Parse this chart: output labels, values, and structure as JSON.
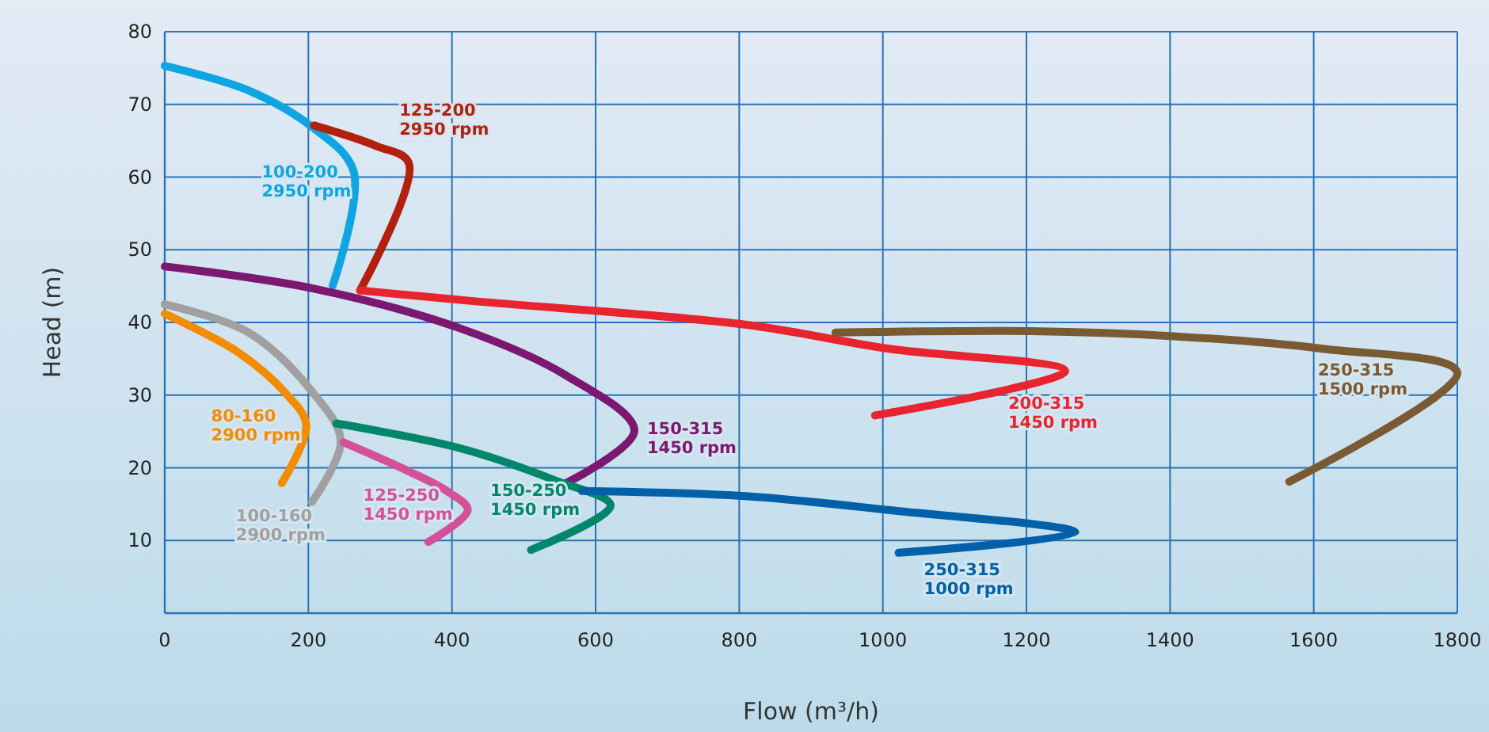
{
  "chart_data": {
    "type": "line",
    "xlabel": "Flow (m³/h)",
    "ylabel": "Head (m)",
    "xlim": [
      0,
      1800
    ],
    "xticks": [
      0,
      200,
      400,
      600,
      800,
      1000,
      1200,
      1400,
      1600,
      1800
    ],
    "ylim": [
      0,
      80
    ],
    "yticks": [
      10,
      20,
      30,
      40,
      50,
      60,
      70,
      80
    ],
    "grid": true,
    "marker": "none",
    "line_style": "solid",
    "series": [
      {
        "name": "100-200 2950 rpm",
        "color": "#0ea5e2",
        "x": [
          0,
          117,
          205,
          263,
          234
        ],
        "values": [
          75.3,
          71.9,
          66.9,
          60.8,
          45.1
        ]
      },
      {
        "name": "125-200 2950 rpm",
        "color": "#b3200e",
        "x": [
          208,
          294,
          340,
          272
        ],
        "values": [
          67.1,
          64.3,
          61.9,
          44.4
        ]
      },
      {
        "name": "200-315 1450 rpm",
        "color": "#e8242f",
        "x": [
          272,
          433,
          808,
          1007,
          1254,
          989
        ],
        "values": [
          44.4,
          42.9,
          39.7,
          36.4,
          33.3,
          27.2
        ]
      },
      {
        "name": "150-315 1450 rpm",
        "color": "#7b1870",
        "x": [
          0,
          205,
          411,
          559,
          654,
          559
        ],
        "values": [
          47.7,
          44.7,
          39.2,
          32.7,
          25.1,
          17.9
        ]
      },
      {
        "name": "100-160 2900 rpm",
        "color": "#a0a0a0",
        "x": [
          0,
          117,
          205,
          245,
          205
        ],
        "values": [
          42.5,
          38.6,
          30.5,
          23.7,
          15.3
        ]
      },
      {
        "name": "80-160 2900 rpm",
        "color": "#f28c00",
        "x": [
          0,
          102,
          168,
          197,
          163
        ],
        "values": [
          41.2,
          35.9,
          30.3,
          25.9,
          17.9
        ]
      },
      {
        "name": "150-250 1450 rpm",
        "color": "#00876a",
        "x": [
          239,
          411,
          543,
          621,
          510
        ],
        "values": [
          26.1,
          22.7,
          18.3,
          14.8,
          8.7
        ]
      },
      {
        "name": "125-250 1450 rpm",
        "color": "#d4519a",
        "x": [
          249,
          338,
          393,
          422,
          367
        ],
        "values": [
          23.5,
          19.6,
          16.8,
          14.2,
          9.8
        ]
      },
      {
        "name": "250-315 1000 rpm",
        "color": "#0060a8",
        "x": [
          581,
          808,
          1007,
          1268,
          1022
        ],
        "values": [
          16.8,
          16.1,
          14.2,
          11.1,
          8.3
        ]
      },
      {
        "name": "250-315 1500 rpm",
        "color": "#7a5a32",
        "x": [
          934,
          1206,
          1405,
          1610,
          1800,
          1566
        ],
        "values": [
          38.6,
          38.8,
          38.1,
          36.4,
          33.1,
          18.1
        ]
      }
    ]
  }
}
